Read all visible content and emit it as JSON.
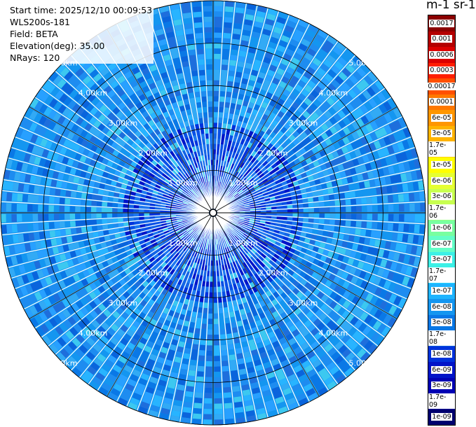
{
  "info": {
    "start_time": "Start time: 2025/12/10 00:09:53",
    "instrument": "WLS200s-181",
    "field": "Field: BETA",
    "elevation": "Elevation(deg): 35.00",
    "nrays": "NRays: 120"
  },
  "colorbar": {
    "title": "m-1 sr-1",
    "labels": [
      "0.0017",
      "0.001",
      "0.0006",
      "0.0003",
      "0.00017",
      "0.0001",
      "6e-05",
      "3e-05",
      "1.7e-05",
      "1e-05",
      "6e-06",
      "3e-06",
      "1.7e-06",
      "1e-06",
      "6e-07",
      "3e-07",
      "1.7e-07",
      "1e-07",
      "6e-08",
      "3e-08",
      "1.7e-08",
      "1e-08",
      "6e-09",
      "3e-09",
      "1.7e-09",
      "1e-09"
    ],
    "colors": [
      "#8b0000",
      "#b40000",
      "#dc0000",
      "#ff1e00",
      "#ff5000",
      "#ff7800",
      "#ff9600",
      "#ffb400",
      "#ffd200",
      "#ffff00",
      "#e6ff32",
      "#c8ff50",
      "#96ff82",
      "#78ffa0",
      "#64ffc8",
      "#3cf0e6",
      "#28d2ff",
      "#1eb4ff",
      "#1496f0",
      "#0a78e6",
      "#005adc",
      "#0032dc",
      "#0014c8",
      "#0000b4",
      "#000096",
      "#00006e"
    ]
  },
  "chart_data": {
    "type": "heatmap",
    "projection": "polar PPI",
    "field": "BETA",
    "elevation_deg": 35.0,
    "n_rays": 120,
    "range_rings_km": [
      1,
      2,
      3,
      4,
      5
    ],
    "ring_labels": [
      "1.00km",
      "2.00km",
      "3.00km",
      "4.00km",
      "5.00km"
    ],
    "max_range_km": 5.0,
    "dominant_value_range": [
      "1e-08",
      "1.7e-07"
    ],
    "dominant_color": "#1496f0",
    "color_scale": "log"
  }
}
